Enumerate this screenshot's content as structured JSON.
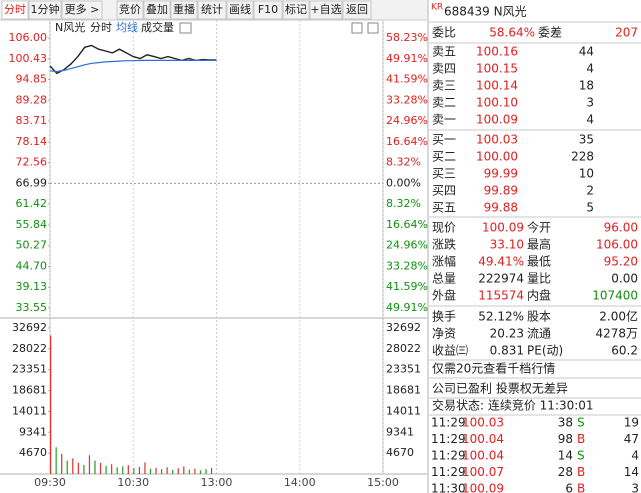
{
  "toolbar": [
    "分时",
    "1分钟",
    "更多 >",
    "竞价",
    "叠加",
    "重播",
    "统计",
    "画线",
    "F10",
    "标记",
    "+自选",
    "返回"
  ],
  "chart_data": {
    "type": "line",
    "title": "N风光",
    "x": [
      0,
      5,
      10,
      15,
      20,
      25,
      30,
      35,
      40,
      45,
      50,
      55,
      60,
      65,
      70,
      75,
      80,
      85,
      90,
      95,
      100,
      105,
      110,
      115,
      120
    ],
    "xlim": [
      0,
      240
    ],
    "xticks": [
      {
        "value": 0,
        "label": "09:30"
      },
      {
        "value": 60,
        "label": "10:30"
      },
      {
        "value": 120,
        "label": "13:00"
      },
      {
        "value": 180,
        "label": "14:00"
      },
      {
        "value": 240,
        "label": "15:00"
      }
    ],
    "ylim": [
      33.55,
      106.0
    ],
    "yticks": [
      {
        "value": 106.0,
        "label": "106.00"
      },
      {
        "value": 100.43,
        "label": "100.43"
      },
      {
        "value": 94.85,
        "label": "94.85"
      },
      {
        "value": 89.28,
        "label": "89.28"
      },
      {
        "value": 83.71,
        "label": "83.71"
      },
      {
        "value": 78.14,
        "label": "78.14"
      },
      {
        "value": 72.56,
        "label": "72.56"
      },
      {
        "value": 66.99,
        "label": "66.99"
      },
      {
        "value": 61.42,
        "label": "61.42"
      },
      {
        "value": 55.84,
        "label": "55.84"
      },
      {
        "value": 50.27,
        "label": "50.27"
      },
      {
        "value": 44.7,
        "label": "44.70"
      },
      {
        "value": 39.13,
        "label": "39.13"
      },
      {
        "value": 33.55,
        "label": "33.55"
      }
    ],
    "y2lim": [
      -49.91,
      58.23
    ],
    "y2ticks": [
      {
        "value": 58.23,
        "label": "58.23%"
      },
      {
        "value": 49.91,
        "label": "49.91%"
      },
      {
        "value": 41.59,
        "label": "41.59%"
      },
      {
        "value": 33.28,
        "label": "33.28%"
      },
      {
        "value": 24.96,
        "label": "24.96%"
      },
      {
        "value": 16.64,
        "label": "16.64%"
      },
      {
        "value": 8.32,
        "label": "8.32%"
      },
      {
        "value": 0,
        "label": "0.00%"
      },
      {
        "value": -8.32,
        "label": "8.32%"
      },
      {
        "value": -16.64,
        "label": "16.64%"
      },
      {
        "value": -24.96,
        "label": "24.96%"
      },
      {
        "value": -33.28,
        "label": "33.28%"
      },
      {
        "value": -41.59,
        "label": "41.59%"
      },
      {
        "value": -49.91,
        "label": "49.91%"
      }
    ],
    "series": [
      {
        "name": "分时",
        "color": "#222222",
        "values": [
          98.5,
          96.5,
          97.5,
          99,
          101,
          103.5,
          104,
          103,
          102.5,
          102,
          103,
          102,
          101,
          100.5,
          101.5,
          101,
          100.5,
          101,
          100.5,
          100,
          100.5,
          100,
          100.2,
          100.1,
          100.09
        ]
      },
      {
        "name": "均线",
        "color": "#2a6fd6",
        "values": [
          97.2,
          97.0,
          97.3,
          97.8,
          98.3,
          98.8,
          99.2,
          99.4,
          99.6,
          99.7,
          99.8,
          99.9,
          99.9,
          100.0,
          100.0,
          100.0,
          100.0,
          100.0,
          100.0,
          100.0,
          100.0,
          100.0,
          100.0,
          100.0,
          100.0
        ]
      }
    ],
    "volume": {
      "name": "成交量",
      "x": [
        0,
        4,
        8,
        12,
        16,
        20,
        24,
        28,
        32,
        36,
        40,
        44,
        48,
        52,
        56,
        60,
        64,
        68,
        72,
        76,
        80,
        84,
        88,
        92,
        96,
        100,
        104,
        108,
        112,
        116
      ],
      "values": [
        31000,
        6000,
        4500,
        3000,
        3500,
        2500,
        2000,
        4200,
        3000,
        2500,
        1800,
        2200,
        1500,
        1700,
        2000,
        1300,
        1600,
        2600,
        1200,
        1400,
        1100,
        1500,
        900,
        1300,
        1700,
        1000,
        1200,
        800,
        1100,
        1400
      ],
      "colors": [
        "#e03030",
        "#20a020",
        "#e03030",
        "#20a020",
        "#e03030",
        "#e03030",
        "#20a020",
        "#e03030",
        "#20a020",
        "#e03030",
        "#20a020",
        "#e03030",
        "#20a020",
        "#20a020",
        "#e03030",
        "#20a020",
        "#e03030",
        "#e03030",
        "#20a020",
        "#e03030",
        "#20a020",
        "#e03030",
        "#20a020",
        "#e03030",
        "#e03030",
        "#20a020",
        "#e03030",
        "#20a020",
        "#20a020",
        "#e03030"
      ],
      "ylim": [
        0,
        32692
      ],
      "yticks": [
        32692,
        28022,
        23351,
        18681,
        14011,
        9341,
        4670
      ]
    }
  },
  "quote": {
    "badge": "KR",
    "code": "688439 N风光",
    "weibi": [
      "委比",
      "58.64%",
      "委差",
      "207"
    ],
    "asks": [
      [
        "卖五",
        "100.16",
        "44"
      ],
      [
        "卖四",
        "100.15",
        "4"
      ],
      [
        "卖三",
        "100.14",
        "18"
      ],
      [
        "卖二",
        "100.10",
        "3"
      ],
      [
        "卖一",
        "100.09",
        "4"
      ]
    ],
    "bids": [
      [
        "买一",
        "100.03",
        "35"
      ],
      [
        "买二",
        "100.00",
        "228"
      ],
      [
        "买三",
        "99.99",
        "10"
      ],
      [
        "买四",
        "99.89",
        "2"
      ],
      [
        "买五",
        "99.88",
        "5"
      ]
    ],
    "stats": [
      [
        "现价",
        "100.09",
        "今开",
        "96.00"
      ],
      [
        "涨跌",
        "33.10",
        "最高",
        "106.00"
      ],
      [
        "涨幅",
        "49.41%",
        "最低",
        "95.20"
      ],
      [
        "总量",
        "222974",
        "量比",
        "0.00"
      ],
      [
        "外盘",
        "115574",
        "内盘",
        "107400"
      ],
      [
        "换手",
        "52.12%",
        "股本",
        "2.00亿"
      ],
      [
        "净资",
        "20.23",
        "流通",
        "4278万"
      ],
      [
        "收益㈢",
        "0.831",
        "PE(动)",
        "60.2"
      ]
    ],
    "notes": [
      "仅需20元查看千档行情",
      "公司已盈利 投票权无差异",
      "交易状态: 连续竞价 11:30:01"
    ],
    "trades": [
      [
        "11:29",
        "100.03",
        "38",
        "S",
        "19"
      ],
      [
        "11:29",
        "100.04",
        "98",
        "B",
        "47"
      ],
      [
        "11:29",
        "100.04",
        "14",
        "S",
        "4"
      ],
      [
        "11:29",
        "100.07",
        "28",
        "B",
        "14"
      ],
      [
        "11:30",
        "100.09",
        "6",
        "B",
        "3"
      ]
    ]
  }
}
